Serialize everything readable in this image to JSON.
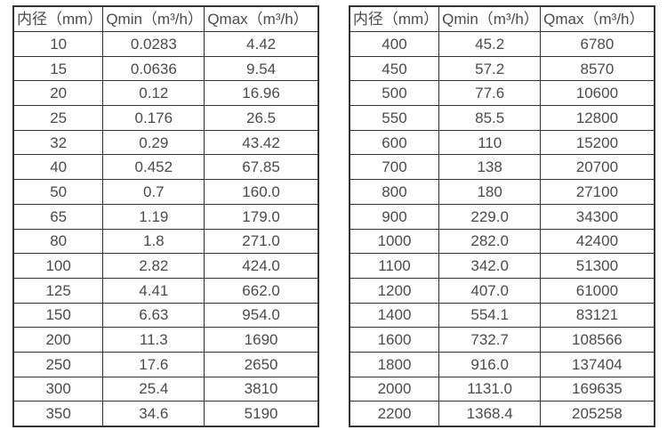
{
  "page": {
    "background": "#ffffff",
    "text_color": "#4a4a4a",
    "border_color": "#333333"
  },
  "tables": [
    {
      "name": "small-diameter-flow-ranges",
      "headers": [
        "内径（mm）",
        "Qmin（m³/h）",
        "Qmax（m³/h）"
      ],
      "rows": [
        [
          "10",
          "0.0283",
          "4.42"
        ],
        [
          "15",
          "0.0636",
          "9.54"
        ],
        [
          "20",
          "0.12",
          "16.96"
        ],
        [
          "25",
          "0.176",
          "26.5"
        ],
        [
          "32",
          "0.29",
          "43.42"
        ],
        [
          "40",
          "0.452",
          "67.85"
        ],
        [
          "50",
          "0.7",
          "160.0"
        ],
        [
          "65",
          "1.19",
          "179.0"
        ],
        [
          "80",
          "1.8",
          "271.0"
        ],
        [
          "100",
          "2.82",
          "424.0"
        ],
        [
          "125",
          "4.41",
          "662.0"
        ],
        [
          "150",
          "6.63",
          "954.0"
        ],
        [
          "200",
          "11.3",
          "1690"
        ],
        [
          "250",
          "17.6",
          "2650"
        ],
        [
          "300",
          "25.4",
          "3810"
        ],
        [
          "350",
          "34.6",
          "5190"
        ]
      ]
    },
    {
      "name": "large-diameter-flow-ranges",
      "headers": [
        "内径（mm）",
        "Qmin（m³/h）",
        "Qmax（m³/h）"
      ],
      "rows": [
        [
          "400",
          "45.2",
          "6780"
        ],
        [
          "450",
          "57.2",
          "8570"
        ],
        [
          "500",
          "77.6",
          "10600"
        ],
        [
          "550",
          "85.5",
          "12800"
        ],
        [
          "600",
          "110",
          "15200"
        ],
        [
          "700",
          "138",
          "20700"
        ],
        [
          "800",
          "180",
          "27100"
        ],
        [
          "900",
          "229.0",
          "34300"
        ],
        [
          "1000",
          "282.0",
          "42400"
        ],
        [
          "1100",
          "342.0",
          "51300"
        ],
        [
          "1200",
          "407.0",
          "61000"
        ],
        [
          "1400",
          "554.1",
          "83121"
        ],
        [
          "1600",
          "732.7",
          "108566"
        ],
        [
          "1800",
          "916.0",
          "137404"
        ],
        [
          "2000",
          "1131.0",
          "169635"
        ],
        [
          "2200",
          "1368.4",
          "205258"
        ]
      ]
    }
  ]
}
